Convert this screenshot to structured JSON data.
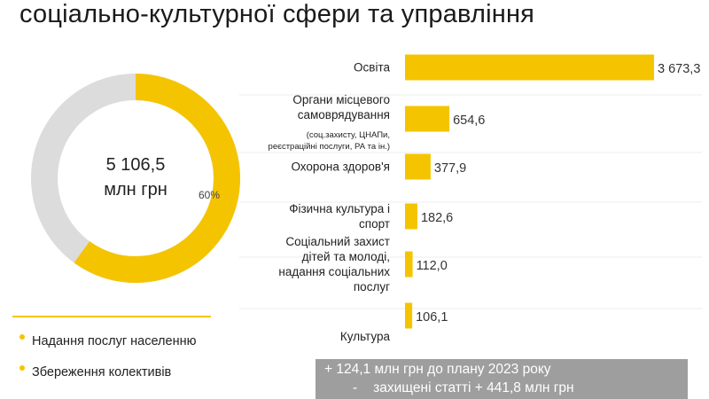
{
  "header": {
    "title": "соціально-культурної сфери та управління"
  },
  "donut": {
    "total_line1": "5 106,5",
    "total_line2": "млн грн",
    "segment_label": "60%",
    "share_pct": 60,
    "colors": {
      "main": "#f5c400",
      "rest": "#dcdcdc"
    }
  },
  "legend": {
    "items": [
      {
        "label": "Надання послуг населенню"
      },
      {
        "label": "Збереження колективів"
      }
    ]
  },
  "note": {
    "line1": "+ 124,1 млн грн до плану 2023 року",
    "line2_dash": "-",
    "line2_text": "захищені статті  + 441,8 млн грн"
  },
  "chart_data": {
    "type": "bar",
    "orientation": "horizontal",
    "categories": [
      "Освіта",
      "Органи місцевого самоврядування (соц.захисту, ЦНАПи, реєстраційні послуги, РА та ін.)",
      "Охорона здоров'я",
      "Фізична культура і спорт",
      "Соціальний захист дітей та молоді, надання соціальних послуг",
      "Культура"
    ],
    "label_lines": [
      [
        "Освіта"
      ],
      [
        "Органи місцевого",
        "самоврядування"
      ],
      [
        "Охорона здоров'я"
      ],
      [
        "Фізична культура і",
        "спорт"
      ],
      [
        "Соціальний захист",
        "дітей та молоді,",
        "надання соціальних",
        "послуг"
      ],
      [
        "Культура"
      ]
    ],
    "sublabel": [
      "",
      "(соц.захисту, ЦНАПи,",
      "реєстраційні послуги, РА та ін.)",
      "",
      "",
      ""
    ],
    "values": [
      3673.3,
      654.6,
      377.9,
      182.6,
      112.0,
      106.1
    ],
    "value_labels": [
      "3 673,3",
      "654,6",
      "377,9",
      "182,6",
      "112,0",
      "106,1"
    ],
    "xlim": [
      0,
      3673.3
    ],
    "color": "#f5c400",
    "unit": "млн грн"
  }
}
